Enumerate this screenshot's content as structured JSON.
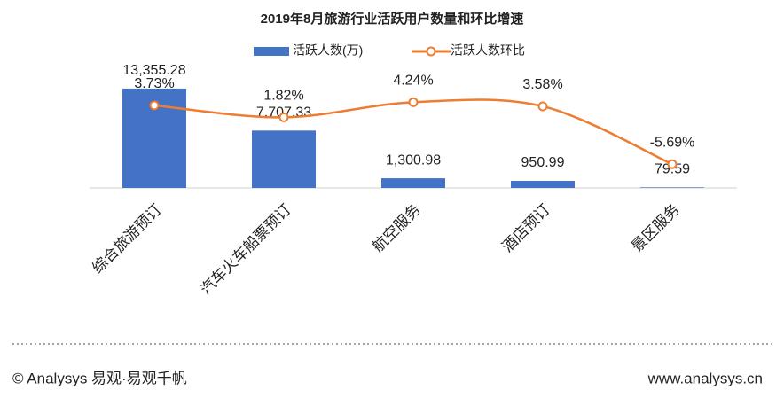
{
  "chart_data": {
    "type": "bar-line",
    "title": "2019年8月旅游行业活跃用户数量和环比增速",
    "categories": [
      "综合旅游预订",
      "汽车火车船票预订",
      "航空服务",
      "酒店预订",
      "景区服务"
    ],
    "series": [
      {
        "name": "活跃人数(万)",
        "type": "bar",
        "color": "#4472c4",
        "values": [
          13355.28,
          7707.33,
          1300.98,
          950.99,
          79.59
        ],
        "value_labels": [
          "13,355.28",
          "7,707.33",
          "1,300.98",
          "950.99",
          "79.59"
        ]
      },
      {
        "name": "活跃人数环比",
        "type": "line",
        "axis": "y2",
        "color": "#ed7d31",
        "values": [
          3.73,
          1.82,
          4.24,
          3.58,
          -5.69
        ],
        "value_labels": [
          "3.73%",
          "1.82%",
          "4.24%",
          "3.58%",
          "-5.69%"
        ]
      }
    ],
    "ylim": [
      0,
      14000
    ],
    "y2lim": [
      -9.5,
      7.2
    ],
    "grid": false
  },
  "footer": {
    "left": "© Analysys 易观·易观千帆",
    "right": "www.analysys.cn"
  }
}
